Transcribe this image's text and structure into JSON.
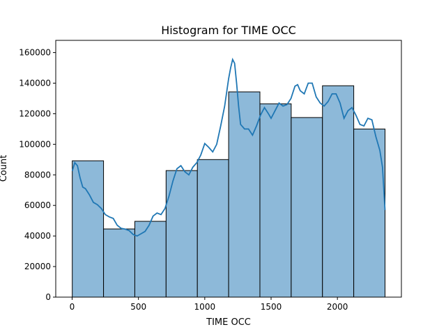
{
  "chart_data": {
    "type": "bar",
    "subtype": "histogram-with-kde",
    "title": "Histogram for TIME OCC",
    "xlabel": "TIME OCC",
    "ylabel": "Count",
    "xlim": [
      -123.5,
      2482.5
    ],
    "ylim": [
      0,
      168000
    ],
    "xticks": [
      0,
      500,
      1000,
      1500,
      2000
    ],
    "yticks": [
      0,
      20000,
      40000,
      60000,
      80000,
      100000,
      120000,
      140000,
      160000
    ],
    "bins": [
      {
        "x0": 1,
        "x1": 236.8,
        "count": 89200
      },
      {
        "x0": 236.8,
        "x1": 472.6,
        "count": 44600
      },
      {
        "x0": 472.6,
        "x1": 708.4,
        "count": 49600
      },
      {
        "x0": 708.4,
        "x1": 944.2,
        "count": 82800
      },
      {
        "x0": 944.2,
        "x1": 1180,
        "count": 90000
      },
      {
        "x0": 1180,
        "x1": 1415.8,
        "count": 134300
      },
      {
        "x0": 1415.8,
        "x1": 1651.6,
        "count": 126500
      },
      {
        "x0": 1651.6,
        "x1": 1887.4,
        "count": 117500
      },
      {
        "x0": 1887.4,
        "x1": 2123.2,
        "count": 138300
      },
      {
        "x0": 2123.2,
        "x1": 2359,
        "count": 110000
      }
    ],
    "kde": {
      "x": [
        1,
        20,
        40,
        60,
        80,
        100,
        130,
        160,
        190,
        220,
        250,
        280,
        310,
        340,
        370,
        400,
        430,
        460,
        490,
        520,
        550,
        580,
        610,
        640,
        670,
        700,
        730,
        760,
        790,
        820,
        850,
        880,
        910,
        940,
        970,
        1000,
        1030,
        1060,
        1090,
        1120,
        1150,
        1180,
        1195,
        1210,
        1225,
        1240,
        1255,
        1270,
        1300,
        1330,
        1360,
        1390,
        1420,
        1450,
        1480,
        1500,
        1530,
        1560,
        1590,
        1620,
        1650,
        1680,
        1700,
        1720,
        1750,
        1780,
        1810,
        1840,
        1870,
        1900,
        1930,
        1960,
        1990,
        2020,
        2050,
        2080,
        2110,
        2140,
        2170,
        2200,
        2230,
        2260,
        2290,
        2320,
        2340,
        2359
      ],
      "y": [
        82500,
        88000,
        86000,
        78000,
        72000,
        71000,
        67000,
        62000,
        60500,
        58000,
        54000,
        52500,
        51500,
        47000,
        45000,
        44500,
        43500,
        41000,
        40000,
        41500,
        43000,
        47000,
        53000,
        55000,
        54000,
        58000,
        66000,
        76000,
        84000,
        86000,
        82000,
        80000,
        85000,
        88000,
        93000,
        100500,
        98000,
        95000,
        100000,
        112000,
        125000,
        143000,
        150000,
        155500,
        153000,
        140000,
        125000,
        113000,
        110000,
        110000,
        106000,
        112000,
        119000,
        124000,
        120000,
        117000,
        122000,
        127000,
        125000,
        126000,
        130000,
        138000,
        139000,
        135000,
        133000,
        140000,
        140000,
        131000,
        127000,
        125000,
        128000,
        133000,
        133000,
        127000,
        117000,
        122000,
        124000,
        119000,
        113000,
        112000,
        117000,
        116000,
        105000,
        96000,
        85000,
        57000
      ]
    }
  }
}
